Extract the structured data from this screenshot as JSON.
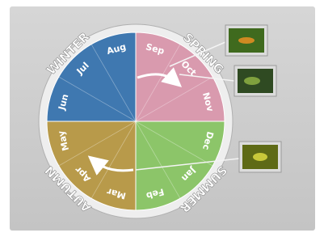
{
  "seasons": [
    {
      "name": "SPRING",
      "months": [
        "Sep",
        "Oct",
        "Nov"
      ],
      "color": "#d99aae"
    },
    {
      "name": "SUMMER",
      "months": [
        "Dec",
        "Jan",
        "Feb"
      ],
      "color": "#8cc569"
    },
    {
      "name": "AUTUMN",
      "months": [
        "Mar",
        "Apr",
        "May"
      ],
      "color": "#b89a4a"
    },
    {
      "name": "WINTER",
      "months": [
        "Jun",
        "Jul",
        "Aug"
      ],
      "color": "#3f78b0"
    }
  ]
}
